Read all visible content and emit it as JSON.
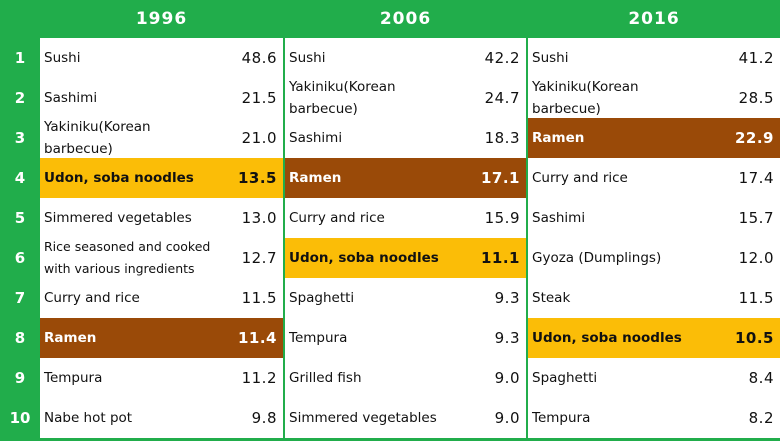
{
  "columns": [
    {
      "year": "1996",
      "rows": [
        {
          "name": "Sushi",
          "value": "48.6",
          "hl": ""
        },
        {
          "name": "Sashimi",
          "value": "21.5",
          "hl": ""
        },
        {
          "name": "Yakiniku(Korean barbecue)",
          "value": "21.0",
          "hl": ""
        },
        {
          "name": "Udon, soba noodles",
          "value": "13.5",
          "hl": "udon"
        },
        {
          "name": "Simmered vegetables",
          "value": "13.0",
          "hl": ""
        },
        {
          "name": "Rice seasoned and cooked with various ingredients",
          "value": "12.7",
          "hl": ""
        },
        {
          "name": "Curry and rice",
          "value": "11.5",
          "hl": ""
        },
        {
          "name": "Ramen",
          "value": "11.4",
          "hl": "ramen"
        },
        {
          "name": "Tempura",
          "value": "11.2",
          "hl": ""
        },
        {
          "name": "Nabe hot pot",
          "value": "9.8",
          "hl": ""
        }
      ]
    },
    {
      "year": "2006",
      "rows": [
        {
          "name": "Sushi",
          "value": "42.2",
          "hl": ""
        },
        {
          "name": "Yakiniku(Korean barbecue)",
          "value": "24.7",
          "hl": ""
        },
        {
          "name": "Sashimi",
          "value": "18.3",
          "hl": ""
        },
        {
          "name": "Ramen",
          "value": "17.1",
          "hl": "ramen"
        },
        {
          "name": "Curry and rice",
          "value": "15.9",
          "hl": ""
        },
        {
          "name": "Udon, soba noodles",
          "value": "11.1",
          "hl": "udon"
        },
        {
          "name": "Spaghetti",
          "value": "9.3",
          "hl": ""
        },
        {
          "name": "Tempura",
          "value": "9.3",
          "hl": ""
        },
        {
          "name": "Grilled fish",
          "value": "9.0",
          "hl": ""
        },
        {
          "name": "Simmered vegetables",
          "value": "9.0",
          "hl": ""
        }
      ]
    },
    {
      "year": "2016",
      "rows": [
        {
          "name": "Sushi",
          "value": "41.2",
          "hl": ""
        },
        {
          "name": "Yakiniku(Korean barbecue)",
          "value": "28.5",
          "hl": ""
        },
        {
          "name": "Ramen",
          "value": "22.9",
          "hl": "ramen"
        },
        {
          "name": "Curry and rice",
          "value": "17.4",
          "hl": ""
        },
        {
          "name": "Sashimi",
          "value": "15.7",
          "hl": ""
        },
        {
          "name": "Gyoza (Dumplings)",
          "value": "12.0",
          "hl": ""
        },
        {
          "name": "Steak",
          "value": "11.5",
          "hl": ""
        },
        {
          "name": "Udon, soba noodles",
          "value": "10.5",
          "hl": "udon"
        },
        {
          "name": "Spaghetti",
          "value": "8.4",
          "hl": ""
        },
        {
          "name": "Tempura",
          "value": "8.2",
          "hl": ""
        }
      ]
    }
  ],
  "ranks": [
    "1",
    "2",
    "3",
    "4",
    "5",
    "6",
    "7",
    "8",
    "9",
    "10"
  ],
  "colors": {
    "header": "#21ad4b",
    "ramen": "#9a4a08",
    "udon": "#fbbd07"
  }
}
